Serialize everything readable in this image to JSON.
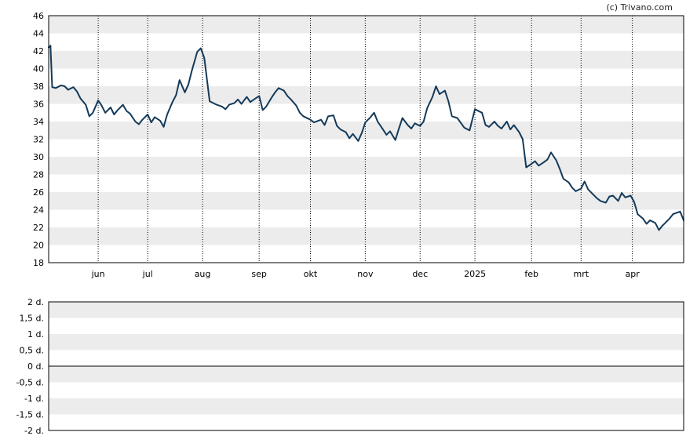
{
  "credit": "(c) Trivano.com",
  "colors": {
    "line": "#143a5a",
    "band": "#ececec",
    "frame": "#000000",
    "zero_line": "#000000"
  },
  "chart_data": [
    {
      "type": "line",
      "title": "",
      "xlabel": "",
      "ylabel": "",
      "ylim": [
        18,
        46
      ],
      "y_ticks": [
        "18",
        "20",
        "22",
        "24",
        "26",
        "28",
        "30",
        "32",
        "34",
        "36",
        "38",
        "40",
        "42",
        "44",
        "46"
      ],
      "x_ticks": [
        "jun",
        "jul",
        "aug",
        "sep",
        "okt",
        "nov",
        "dec",
        "2025",
        "feb",
        "mrt",
        "apr"
      ],
      "x_range": [
        "2024-05-06",
        "2025-04-30"
      ],
      "x_tick_dates": [
        "2024-06-03",
        "2024-07-01",
        "2024-08-01",
        "2024-09-02",
        "2024-10-01",
        "2024-11-01",
        "2024-12-02",
        "2025-01-02",
        "2025-02-03",
        "2025-03-03",
        "2025-04-01"
      ],
      "grid": {
        "vertical_dotted": true,
        "horizontal_bands": true
      },
      "series": [
        {
          "x": [
            "2024-05-06",
            "2024-05-07",
            "2024-05-08",
            "2024-05-10",
            "2024-05-13",
            "2024-05-15",
            "2024-05-17",
            "2024-05-20",
            "2024-05-22",
            "2024-05-24",
            "2024-05-27",
            "2024-05-29",
            "2024-05-31",
            "2024-06-03",
            "2024-06-05",
            "2024-06-07",
            "2024-06-10",
            "2024-06-12",
            "2024-06-14",
            "2024-06-17",
            "2024-06-19",
            "2024-06-21",
            "2024-06-24",
            "2024-06-26",
            "2024-06-28",
            "2024-07-01",
            "2024-07-03",
            "2024-07-05",
            "2024-07-08",
            "2024-07-10",
            "2024-07-12",
            "2024-07-15",
            "2024-07-17",
            "2024-07-19",
            "2024-07-22",
            "2024-07-24",
            "2024-07-26",
            "2024-07-29",
            "2024-07-31",
            "2024-08-02",
            "2024-08-05",
            "2024-08-07",
            "2024-08-09",
            "2024-08-12",
            "2024-08-14",
            "2024-08-16",
            "2024-08-19",
            "2024-08-21",
            "2024-08-23",
            "2024-08-26",
            "2024-08-28",
            "2024-08-30",
            "2024-09-02",
            "2024-09-04",
            "2024-09-06",
            "2024-09-09",
            "2024-09-11",
            "2024-09-13",
            "2024-09-16",
            "2024-09-18",
            "2024-09-20",
            "2024-09-23",
            "2024-09-25",
            "2024-09-27",
            "2024-10-01",
            "2024-10-03",
            "2024-10-07",
            "2024-10-09",
            "2024-10-11",
            "2024-10-14",
            "2024-10-16",
            "2024-10-18",
            "2024-10-21",
            "2024-10-23",
            "2024-10-25",
            "2024-10-28",
            "2024-10-30",
            "2024-11-01",
            "2024-11-04",
            "2024-11-06",
            "2024-11-08",
            "2024-11-11",
            "2024-11-13",
            "2024-11-15",
            "2024-11-18",
            "2024-11-20",
            "2024-11-22",
            "2024-11-25",
            "2024-11-27",
            "2024-11-29",
            "2024-12-02",
            "2024-12-04",
            "2024-12-06",
            "2024-12-09",
            "2024-12-11",
            "2024-12-13",
            "2024-12-16",
            "2024-12-18",
            "2024-12-20",
            "2024-12-23",
            "2024-12-27",
            "2024-12-30",
            "2025-01-02",
            "2025-01-06",
            "2025-01-08",
            "2025-01-10",
            "2025-01-13",
            "2025-01-15",
            "2025-01-17",
            "2025-01-20",
            "2025-01-22",
            "2025-01-24",
            "2025-01-27",
            "2025-01-29",
            "2025-01-31",
            "2025-02-03",
            "2025-02-05",
            "2025-02-07",
            "2025-02-10",
            "2025-02-12",
            "2025-02-14",
            "2025-02-17",
            "2025-02-19",
            "2025-02-21",
            "2025-02-24",
            "2025-02-26",
            "2025-02-28",
            "2025-03-03",
            "2025-03-05",
            "2025-03-07",
            "2025-03-10",
            "2025-03-12",
            "2025-03-14",
            "2025-03-17",
            "2025-03-19",
            "2025-03-21",
            "2025-03-24",
            "2025-03-26",
            "2025-03-28",
            "2025-03-31",
            "2025-04-02",
            "2025-04-04",
            "2025-04-07",
            "2025-04-09",
            "2025-04-11",
            "2025-04-14",
            "2025-04-16",
            "2025-04-18",
            "2025-04-22",
            "2025-04-24",
            "2025-04-28",
            "2025-04-30"
          ],
          "y": [
            42.4,
            42.6,
            37.9,
            37.8,
            38.1,
            38.0,
            37.6,
            37.9,
            37.4,
            36.6,
            35.9,
            34.6,
            35.0,
            36.4,
            35.8,
            35.0,
            35.6,
            34.8,
            35.3,
            35.9,
            35.2,
            34.9,
            34.0,
            33.7,
            34.2,
            34.8,
            33.9,
            34.5,
            34.1,
            33.4,
            34.8,
            36.2,
            37.0,
            38.7,
            37.3,
            38.2,
            39.8,
            41.9,
            42.3,
            41.2,
            36.3,
            36.1,
            35.9,
            35.7,
            35.4,
            35.9,
            36.1,
            36.5,
            36.0,
            36.8,
            36.2,
            36.5,
            36.9,
            35.3,
            35.7,
            36.7,
            37.3,
            37.8,
            37.5,
            36.9,
            36.5,
            35.8,
            35.0,
            34.6,
            34.2,
            33.9,
            34.2,
            33.6,
            34.6,
            34.7,
            33.5,
            33.1,
            32.8,
            32.1,
            32.6,
            31.8,
            32.7,
            33.9,
            34.5,
            35.0,
            34.0,
            33.1,
            32.5,
            32.9,
            31.9,
            33.2,
            34.4,
            33.6,
            33.2,
            33.8,
            33.5,
            34.0,
            35.5,
            36.8,
            38.0,
            37.1,
            37.5,
            36.3,
            34.6,
            34.4,
            33.3,
            33.0,
            35.4,
            35.0,
            33.6,
            33.4,
            34.0,
            33.5,
            33.2,
            34.0,
            33.1,
            33.6,
            32.8,
            32.0,
            28.8,
            29.2,
            29.5,
            29.0,
            29.4,
            29.7,
            30.5,
            29.6,
            28.6,
            27.5,
            27.1,
            26.5,
            26.1,
            26.4,
            27.2,
            26.3,
            25.7,
            25.3,
            25.0,
            24.8,
            25.5,
            25.6,
            25.0,
            25.9,
            25.4,
            25.6,
            24.9,
            23.5,
            23.0,
            22.4,
            22.8,
            22.5,
            21.7,
            22.2,
            23.0,
            23.5,
            23.8,
            22.8
          ]
        }
      ]
    },
    {
      "type": "bar",
      "title": "",
      "xlabel": "",
      "ylabel": "",
      "ylim": [
        -2,
        2
      ],
      "y_ticks": [
        "2 d.",
        "1,5 d.",
        "1 d.",
        "0,5 d.",
        "0 d.",
        "-0,5 d.",
        "-1 d.",
        "-1,5 d.",
        "-2 d."
      ],
      "baseline": 0,
      "series": []
    }
  ]
}
